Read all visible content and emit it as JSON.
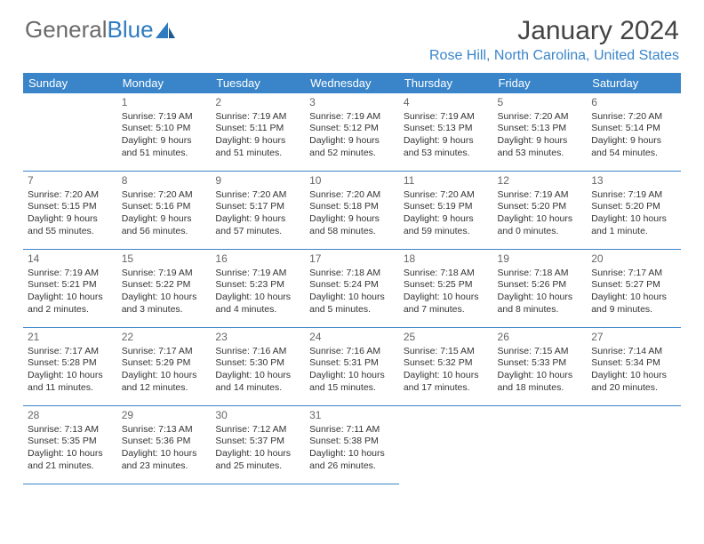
{
  "brand": {
    "part1": "General",
    "part2": "Blue"
  },
  "title": "January 2024",
  "location": "Rose Hill, North Carolina, United States",
  "colors": {
    "header_bg": "#3a85c9",
    "header_text": "#ffffff",
    "border": "#3a85c9",
    "location_text": "#3a85c9",
    "logo_gray": "#6a6a6a",
    "logo_blue": "#2e7bc0"
  },
  "weekdays": [
    "Sunday",
    "Monday",
    "Tuesday",
    "Wednesday",
    "Thursday",
    "Friday",
    "Saturday"
  ],
  "weeks": [
    [
      null,
      {
        "day": "1",
        "sunrise": "Sunrise: 7:19 AM",
        "sunset": "Sunset: 5:10 PM",
        "daylight": "Daylight: 9 hours and 51 minutes."
      },
      {
        "day": "2",
        "sunrise": "Sunrise: 7:19 AM",
        "sunset": "Sunset: 5:11 PM",
        "daylight": "Daylight: 9 hours and 51 minutes."
      },
      {
        "day": "3",
        "sunrise": "Sunrise: 7:19 AM",
        "sunset": "Sunset: 5:12 PM",
        "daylight": "Daylight: 9 hours and 52 minutes."
      },
      {
        "day": "4",
        "sunrise": "Sunrise: 7:19 AM",
        "sunset": "Sunset: 5:13 PM",
        "daylight": "Daylight: 9 hours and 53 minutes."
      },
      {
        "day": "5",
        "sunrise": "Sunrise: 7:20 AM",
        "sunset": "Sunset: 5:13 PM",
        "daylight": "Daylight: 9 hours and 53 minutes."
      },
      {
        "day": "6",
        "sunrise": "Sunrise: 7:20 AM",
        "sunset": "Sunset: 5:14 PM",
        "daylight": "Daylight: 9 hours and 54 minutes."
      }
    ],
    [
      {
        "day": "7",
        "sunrise": "Sunrise: 7:20 AM",
        "sunset": "Sunset: 5:15 PM",
        "daylight": "Daylight: 9 hours and 55 minutes."
      },
      {
        "day": "8",
        "sunrise": "Sunrise: 7:20 AM",
        "sunset": "Sunset: 5:16 PM",
        "daylight": "Daylight: 9 hours and 56 minutes."
      },
      {
        "day": "9",
        "sunrise": "Sunrise: 7:20 AM",
        "sunset": "Sunset: 5:17 PM",
        "daylight": "Daylight: 9 hours and 57 minutes."
      },
      {
        "day": "10",
        "sunrise": "Sunrise: 7:20 AM",
        "sunset": "Sunset: 5:18 PM",
        "daylight": "Daylight: 9 hours and 58 minutes."
      },
      {
        "day": "11",
        "sunrise": "Sunrise: 7:20 AM",
        "sunset": "Sunset: 5:19 PM",
        "daylight": "Daylight: 9 hours and 59 minutes."
      },
      {
        "day": "12",
        "sunrise": "Sunrise: 7:19 AM",
        "sunset": "Sunset: 5:20 PM",
        "daylight": "Daylight: 10 hours and 0 minutes."
      },
      {
        "day": "13",
        "sunrise": "Sunrise: 7:19 AM",
        "sunset": "Sunset: 5:20 PM",
        "daylight": "Daylight: 10 hours and 1 minute."
      }
    ],
    [
      {
        "day": "14",
        "sunrise": "Sunrise: 7:19 AM",
        "sunset": "Sunset: 5:21 PM",
        "daylight": "Daylight: 10 hours and 2 minutes."
      },
      {
        "day": "15",
        "sunrise": "Sunrise: 7:19 AM",
        "sunset": "Sunset: 5:22 PM",
        "daylight": "Daylight: 10 hours and 3 minutes."
      },
      {
        "day": "16",
        "sunrise": "Sunrise: 7:19 AM",
        "sunset": "Sunset: 5:23 PM",
        "daylight": "Daylight: 10 hours and 4 minutes."
      },
      {
        "day": "17",
        "sunrise": "Sunrise: 7:18 AM",
        "sunset": "Sunset: 5:24 PM",
        "daylight": "Daylight: 10 hours and 5 minutes."
      },
      {
        "day": "18",
        "sunrise": "Sunrise: 7:18 AM",
        "sunset": "Sunset: 5:25 PM",
        "daylight": "Daylight: 10 hours and 7 minutes."
      },
      {
        "day": "19",
        "sunrise": "Sunrise: 7:18 AM",
        "sunset": "Sunset: 5:26 PM",
        "daylight": "Daylight: 10 hours and 8 minutes."
      },
      {
        "day": "20",
        "sunrise": "Sunrise: 7:17 AM",
        "sunset": "Sunset: 5:27 PM",
        "daylight": "Daylight: 10 hours and 9 minutes."
      }
    ],
    [
      {
        "day": "21",
        "sunrise": "Sunrise: 7:17 AM",
        "sunset": "Sunset: 5:28 PM",
        "daylight": "Daylight: 10 hours and 11 minutes."
      },
      {
        "day": "22",
        "sunrise": "Sunrise: 7:17 AM",
        "sunset": "Sunset: 5:29 PM",
        "daylight": "Daylight: 10 hours and 12 minutes."
      },
      {
        "day": "23",
        "sunrise": "Sunrise: 7:16 AM",
        "sunset": "Sunset: 5:30 PM",
        "daylight": "Daylight: 10 hours and 14 minutes."
      },
      {
        "day": "24",
        "sunrise": "Sunrise: 7:16 AM",
        "sunset": "Sunset: 5:31 PM",
        "daylight": "Daylight: 10 hours and 15 minutes."
      },
      {
        "day": "25",
        "sunrise": "Sunrise: 7:15 AM",
        "sunset": "Sunset: 5:32 PM",
        "daylight": "Daylight: 10 hours and 17 minutes."
      },
      {
        "day": "26",
        "sunrise": "Sunrise: 7:15 AM",
        "sunset": "Sunset: 5:33 PM",
        "daylight": "Daylight: 10 hours and 18 minutes."
      },
      {
        "day": "27",
        "sunrise": "Sunrise: 7:14 AM",
        "sunset": "Sunset: 5:34 PM",
        "daylight": "Daylight: 10 hours and 20 minutes."
      }
    ],
    [
      {
        "day": "28",
        "sunrise": "Sunrise: 7:13 AM",
        "sunset": "Sunset: 5:35 PM",
        "daylight": "Daylight: 10 hours and 21 minutes."
      },
      {
        "day": "29",
        "sunrise": "Sunrise: 7:13 AM",
        "sunset": "Sunset: 5:36 PM",
        "daylight": "Daylight: 10 hours and 23 minutes."
      },
      {
        "day": "30",
        "sunrise": "Sunrise: 7:12 AM",
        "sunset": "Sunset: 5:37 PM",
        "daylight": "Daylight: 10 hours and 25 minutes."
      },
      {
        "day": "31",
        "sunrise": "Sunrise: 7:11 AM",
        "sunset": "Sunset: 5:38 PM",
        "daylight": "Daylight: 10 hours and 26 minutes."
      },
      null,
      null,
      null
    ]
  ]
}
